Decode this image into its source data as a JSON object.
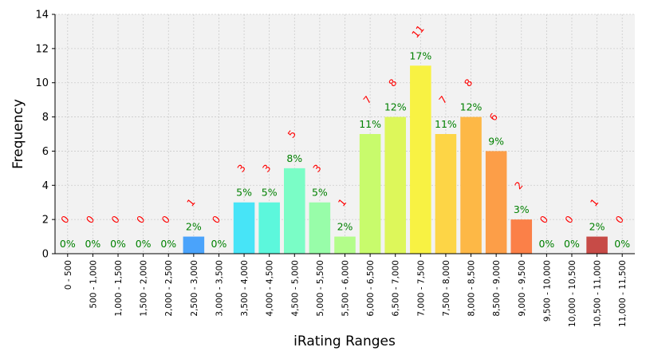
{
  "chart_data": {
    "type": "bar",
    "title": "",
    "xlabel": "iRating Ranges",
    "ylabel": "Frequency",
    "ylim": [
      0,
      14
    ],
    "yticks": [
      0,
      2,
      4,
      6,
      8,
      10,
      12,
      14
    ],
    "grid": true,
    "categories": [
      "0 - 500",
      "500 - 1,000",
      "1,000 - 1,500",
      "1,500 - 2,000",
      "2,000 - 2,500",
      "2,500 - 3,000",
      "3,000 - 3,500",
      "3,500 - 4,000",
      "4,000 - 4,500",
      "4,500 - 5,000",
      "5,000 - 5,500",
      "5,500 - 6,000",
      "6,000 - 6,500",
      "6,500 - 7,000",
      "7,000 - 7,500",
      "7,500 - 8,000",
      "8,000 - 8,500",
      "8,500 - 9,000",
      "9,000 - 9,500",
      "9,500 - 10,000",
      "10,000 - 10,500",
      "10,500 - 11,000",
      "11,000 - 11,500"
    ],
    "values": [
      0,
      0,
      0,
      0,
      0,
      1,
      0,
      3,
      3,
      5,
      3,
      1,
      7,
      8,
      11,
      7,
      8,
      6,
      2,
      0,
      0,
      1,
      0
    ],
    "count_labels": [
      "0",
      "0",
      "0",
      "0",
      "0",
      "1",
      "0",
      "3",
      "3",
      "5",
      "3",
      "1",
      "7",
      "8",
      "11",
      "7",
      "8",
      "6",
      "2",
      "0",
      "0",
      "1",
      "0"
    ],
    "percent_labels": [
      "0%",
      "0%",
      "0%",
      "0%",
      "0%",
      "2%",
      "0%",
      "5%",
      "5%",
      "8%",
      "5%",
      "2%",
      "11%",
      "12%",
      "17%",
      "11%",
      "12%",
      "9%",
      "3%",
      "0%",
      "0%",
      "2%",
      "0%"
    ],
    "colors": [
      "#3b30c8",
      "#3b30c8",
      "#3b30c8",
      "#3b30c8",
      "#3b30c8",
      "#4aa3fb",
      "#47c8f8",
      "#47e4f7",
      "#5cf7dc",
      "#7afdc6",
      "#98fda9",
      "#b3fd8a",
      "#c8fb6c",
      "#ddf75a",
      "#f8f243",
      "#fdd546",
      "#fdb846",
      "#fc9e48",
      "#fb8048",
      "#e8563e",
      "#d84a3f",
      "#c74b47",
      "#b52a30"
    ],
    "count_label_color": "#ff0000",
    "percent_label_color": "#008000",
    "background_color": "#f2f2f2",
    "grid_color": "#cccccc"
  }
}
